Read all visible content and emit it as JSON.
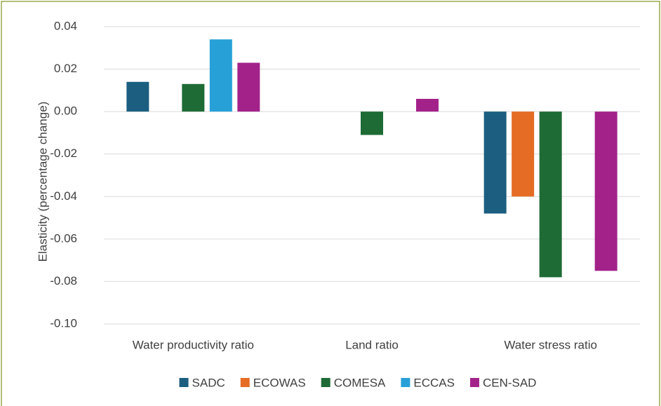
{
  "chart_data": {
    "type": "bar",
    "y_label": "Elasticity (percentage change)",
    "categories": [
      "Water productivity ratio",
      "Land ratio",
      "Water stress ratio"
    ],
    "series": [
      {
        "name": "SADC",
        "color": "#1b5e80",
        "values": [
          0.014,
          null,
          -0.048
        ]
      },
      {
        "name": "ECOWAS",
        "color": "#e46c25",
        "values": [
          null,
          null,
          -0.04
        ]
      },
      {
        "name": "COMESA",
        "color": "#1e6b35",
        "values": [
          0.013,
          -0.011,
          -0.078
        ]
      },
      {
        "name": "ECCAS",
        "color": "#27a0d8",
        "values": [
          0.034,
          null,
          null
        ]
      },
      {
        "name": "CEN-SAD",
        "color": "#a3228a",
        "values": [
          0.023,
          0.006,
          -0.075
        ]
      }
    ],
    "ylim": [
      -0.1,
      0.04
    ],
    "yticks": [
      0.04,
      0.02,
      {
        "value": 0,
        "label": "0.00"
      },
      -0.02,
      -0.04,
      -0.06,
      -0.08,
      {
        "value": -0.1,
        "label": "-0.10"
      }
    ],
    "grid": true
  }
}
